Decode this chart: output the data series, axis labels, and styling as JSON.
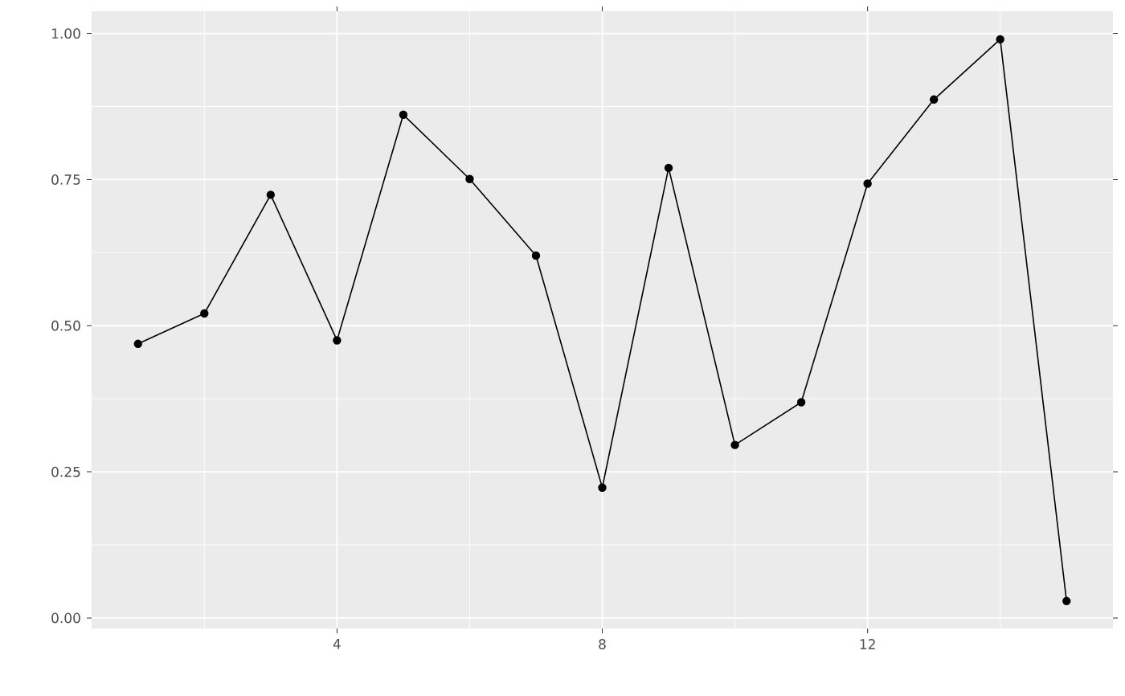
{
  "chart_data": {
    "type": "line",
    "x": [
      1,
      2,
      3,
      4,
      5,
      6,
      7,
      8,
      9,
      10,
      11,
      12,
      13,
      14,
      15
    ],
    "series": [
      {
        "color": "#000000",
        "values": [
          0.469,
          0.521,
          0.724,
          0.475,
          0.861,
          0.751,
          0.62,
          0.223,
          0.77,
          0.296,
          0.369,
          0.743,
          0.887,
          0.99,
          0.029
        ]
      }
    ],
    "xlim": [
      0.3,
      15.7
    ],
    "ylim": [
      -0.018,
      1.038
    ],
    "xticks": [
      4,
      8,
      12
    ],
    "yticks": [
      {
        "value": 0,
        "label": "0.00"
      },
      {
        "value": 0.25,
        "label": "0.25"
      },
      {
        "value": 0.5,
        "label": "0.50"
      },
      {
        "value": 0.75,
        "label": "0.75"
      },
      {
        "value": 1,
        "label": "1.00"
      }
    ],
    "grid": true,
    "marker": "circle",
    "line_style": "solid"
  }
}
